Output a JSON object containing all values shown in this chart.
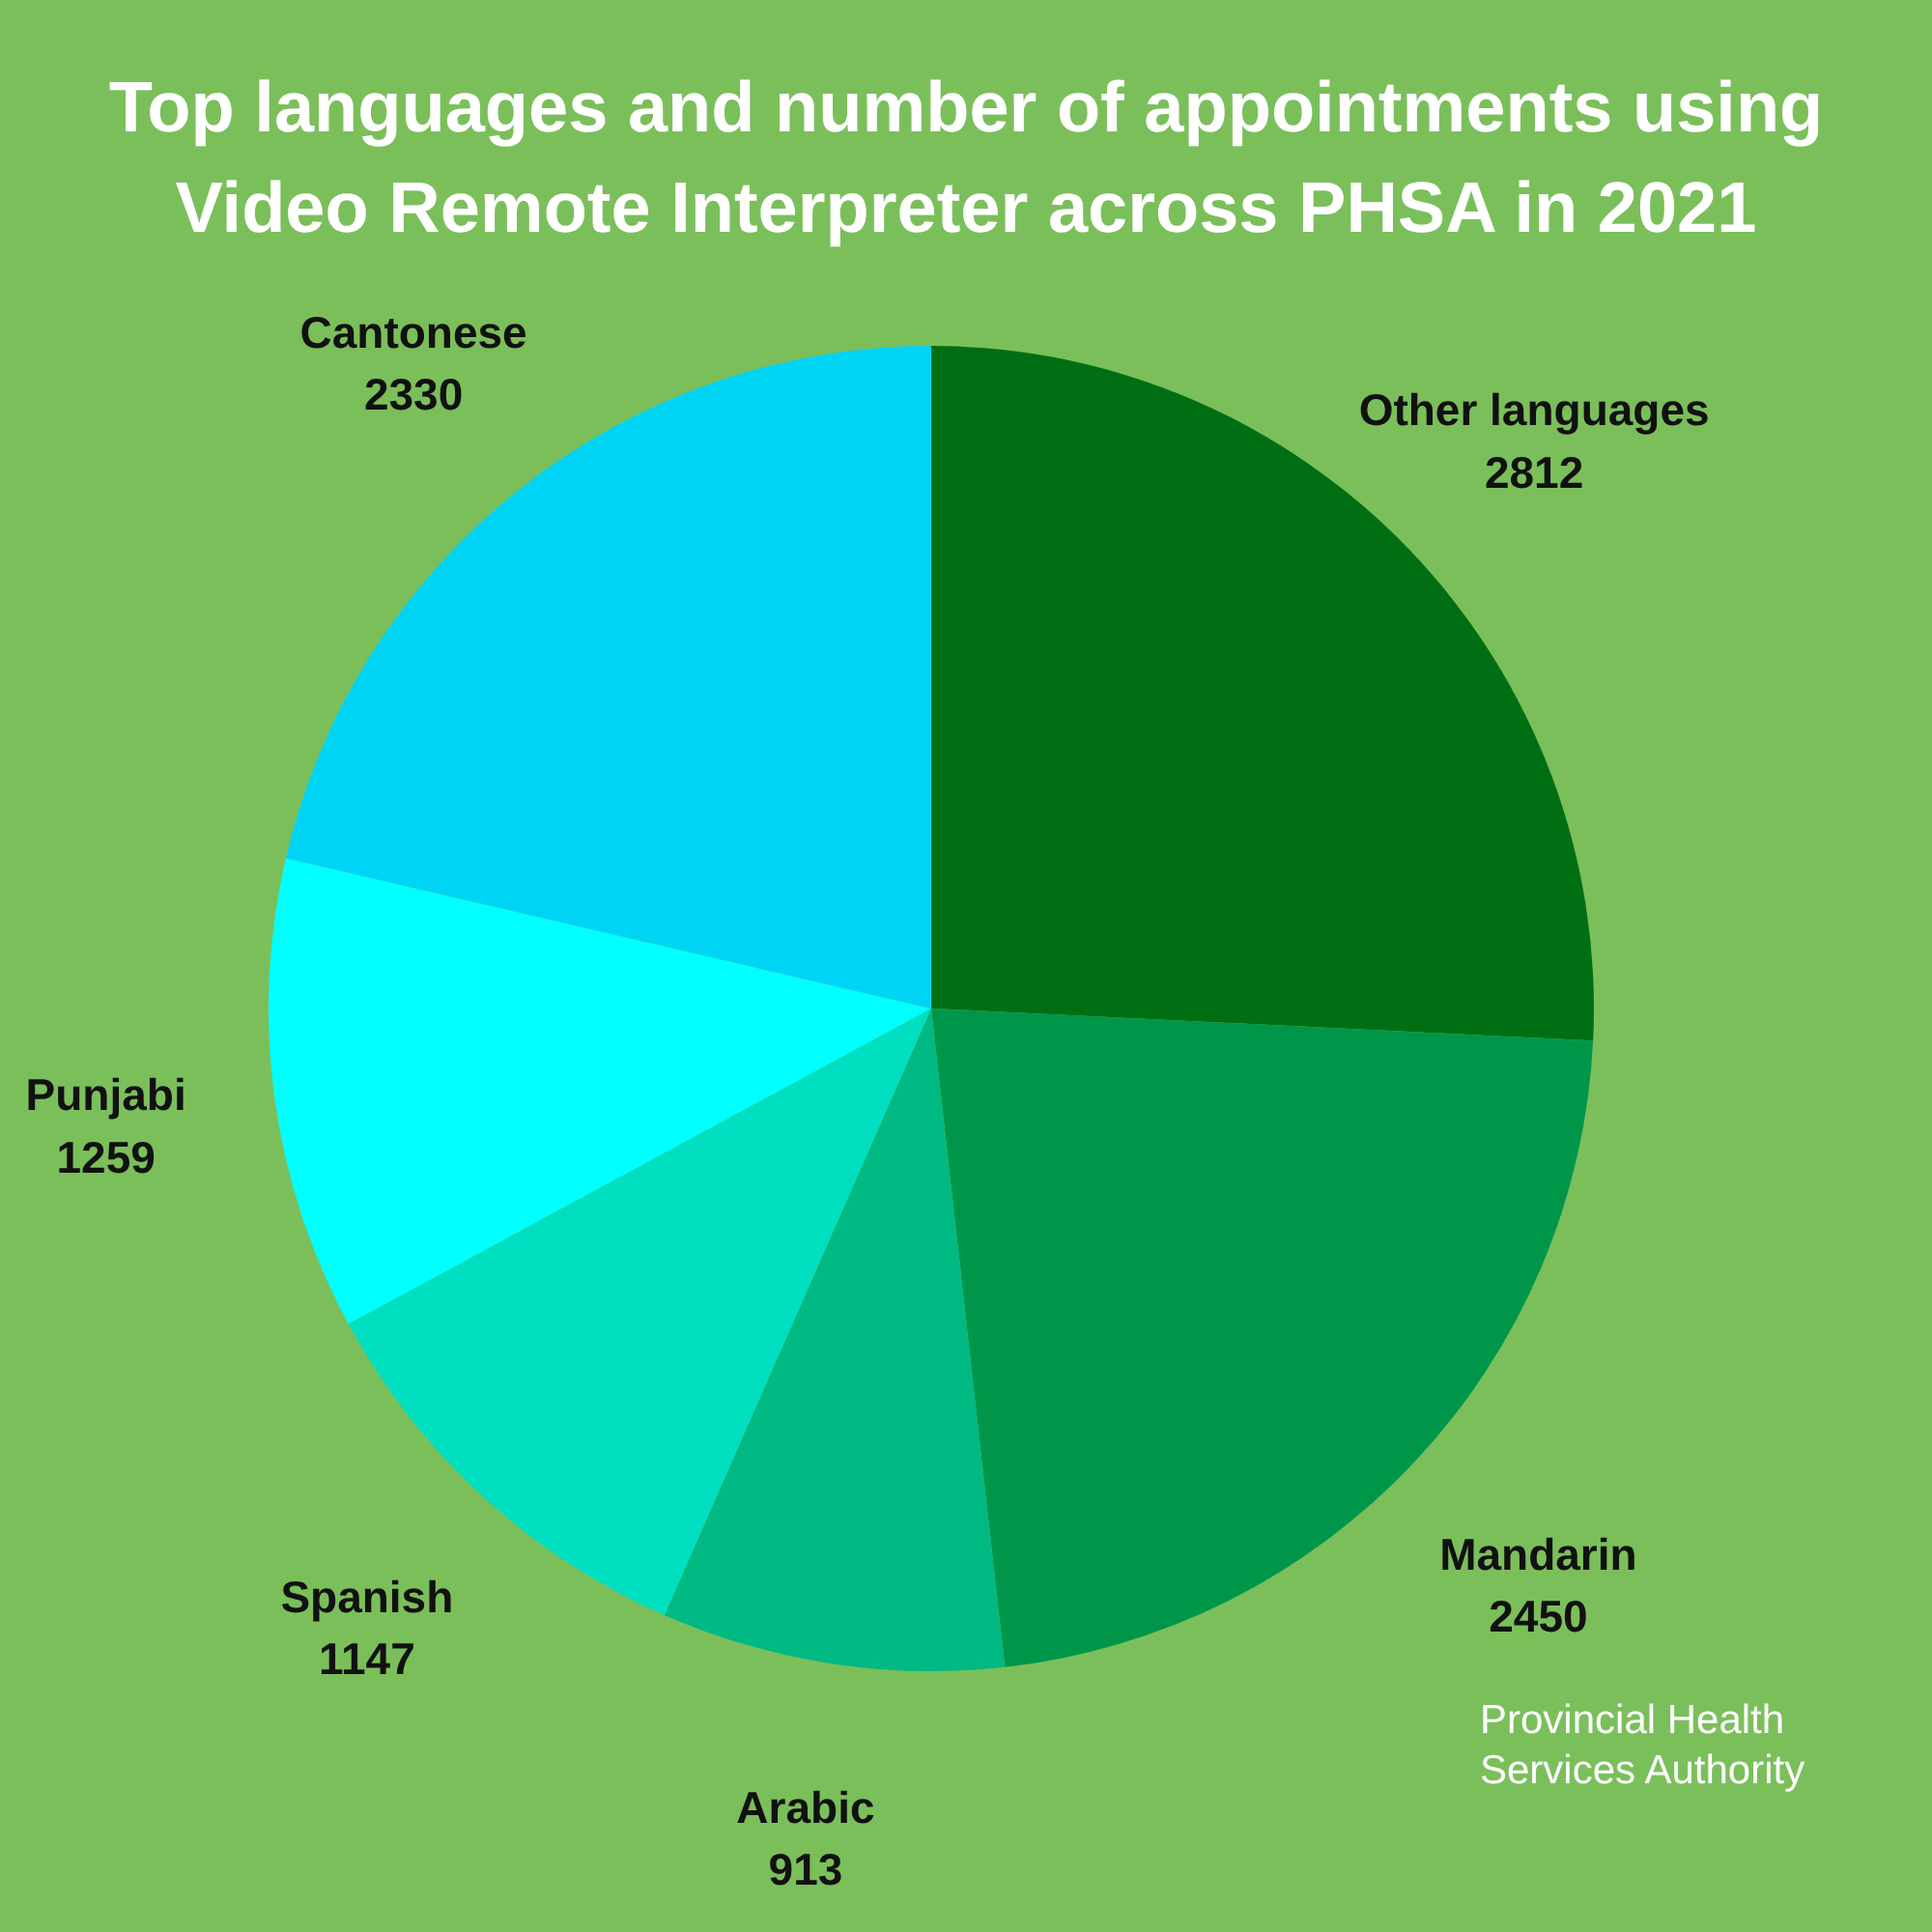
{
  "chart_data": {
    "type": "pie",
    "title": "Top languages and number of appointments using Video Remote Interpreter across PHSA in 2021",
    "categories": [
      "Other languages",
      "Mandarin",
      "Arabic",
      "Spanish",
      "Punjabi",
      "Cantonese"
    ],
    "values": [
      2812,
      2450,
      913,
      1147,
      1259,
      2330
    ],
    "colors": [
      "#006f14",
      "#00964a",
      "#00b983",
      "#00dfc0",
      "#00ffff",
      "#00d4f5"
    ],
    "data_labels": true,
    "annotations": [
      "Provincial Health Services Authority"
    ]
  }
}
